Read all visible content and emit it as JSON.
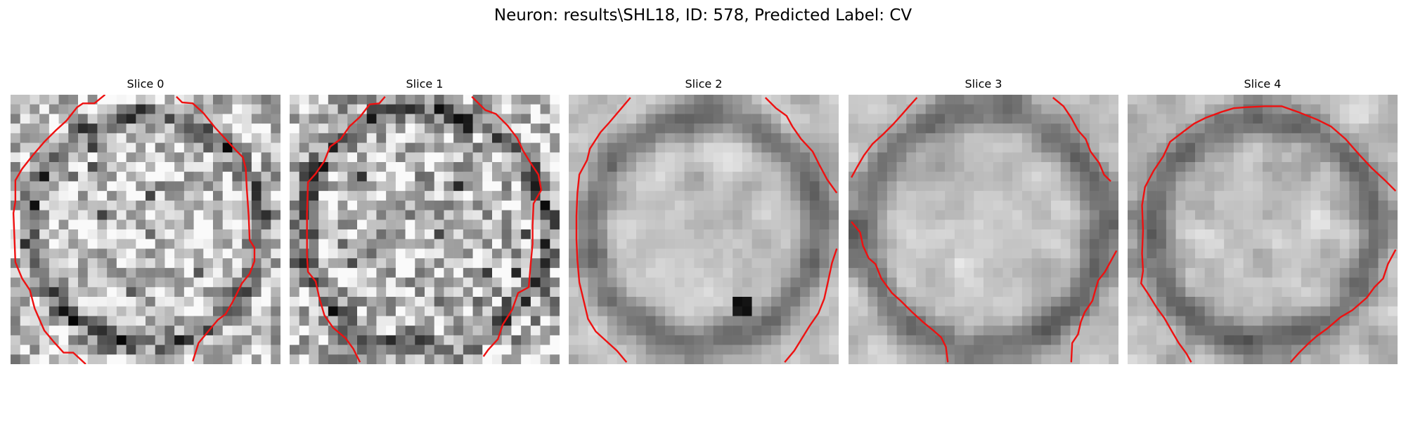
{
  "figure": {
    "title": "Neuron: results\\SHL18, ID: 578, Predicted Label: CV"
  },
  "style": {
    "contour_color": "#ee1111",
    "grayscale": true
  },
  "panels": [
    {
      "title": "Slice 0",
      "contour": [
        [
          [
            0.08,
            0.99
          ],
          [
            0.06,
            0.98
          ],
          [
            0.05,
            0.96
          ],
          [
            0.03,
            0.96
          ],
          [
            0.02,
            0.94
          ],
          [
            0.0,
            0.93
          ],
          [
            -0.02,
            0.91
          ],
          [
            -0.04,
            0.91
          ],
          [
            -0.06,
            0.89
          ],
          [
            -0.08,
            0.87
          ],
          [
            -0.09,
            0.85
          ],
          [
            -0.1,
            0.83
          ],
          [
            -0.11,
            0.82
          ],
          [
            -0.13,
            0.8
          ],
          [
            -0.14,
            0.8
          ],
          [
            -0.16,
            0.78
          ],
          [
            -0.16,
            0.76
          ],
          [
            -0.18,
            0.74
          ],
          [
            -0.18,
            0.72
          ],
          [
            -0.2,
            0.7
          ],
          [
            -0.22,
            0.68
          ],
          [
            -0.24,
            0.66
          ],
          [
            -0.26,
            0.64
          ],
          [
            -0.28,
            0.62
          ],
          [
            -0.29,
            0.6
          ],
          [
            -0.31,
            0.58
          ],
          [
            -0.32,
            0.56
          ],
          [
            -0.33,
            0.54
          ],
          [
            -0.35,
            0.52
          ],
          [
            -0.36,
            0.5
          ],
          [
            -0.37,
            0.48
          ],
          [
            -0.39,
            0.46
          ],
          [
            -0.4,
            0.44
          ],
          [
            -0.41,
            0.42
          ],
          [
            -0.43,
            0.4
          ],
          [
            -0.44,
            0.38
          ],
          [
            -0.45,
            0.36
          ],
          [
            -0.46,
            0.34
          ],
          [
            -0.47,
            0.32
          ],
          [
            -0.48,
            0.3
          ],
          [
            -0.49,
            0.28
          ],
          [
            -0.5,
            0.26
          ],
          [
            -0.51,
            0.24
          ],
          [
            -0.52,
            0.22
          ],
          [
            -0.53,
            0.2
          ],
          [
            -0.53,
            0.18
          ],
          [
            -0.54,
            0.16
          ],
          [
            -0.55,
            0.14
          ],
          [
            -0.55,
            0.12
          ],
          [
            -0.56,
            0.1
          ],
          [
            -0.56,
            0.08
          ],
          [
            -0.57,
            0.06
          ],
          [
            -0.57,
            0.04
          ],
          [
            -0.58,
            0.02
          ],
          [
            -0.58,
            0.0
          ]
        ],
        [
          [
            0.6,
            0.75
          ],
          [
            0.58,
            0.74
          ],
          [
            0.56,
            0.72
          ],
          [
            0.55,
            0.7
          ],
          [
            0.53,
            0.68
          ],
          [
            0.52,
            0.66
          ],
          [
            0.51,
            0.64
          ]
        ]
      ]
    },
    {
      "title": "Slice 1",
      "contour": []
    },
    {
      "title": "Slice 2",
      "contour": []
    },
    {
      "title": "Slice 3",
      "contour": []
    },
    {
      "title": "Slice 4",
      "contour": []
    }
  ]
}
